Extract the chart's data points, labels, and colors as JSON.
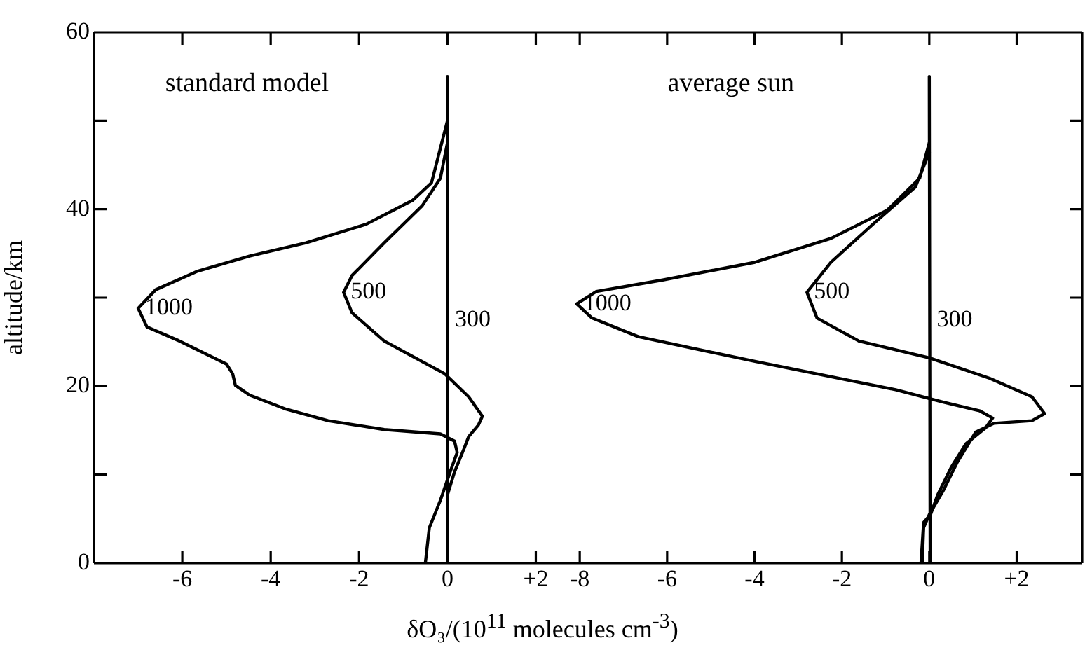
{
  "chart_data": [
    {
      "type": "line",
      "title": "standard model",
      "xlabel": "δO₃/(10$^{11}$ molecules cm$^{-3}$)",
      "ylabel": "altitude/km",
      "xlim": [
        -8,
        2.5
      ],
      "xticks": [
        -6,
        -4,
        -2,
        0,
        {
          "value": 2,
          "label": "+2"
        }
      ],
      "ylim": [
        0,
        60
      ],
      "yticks": [
        0,
        {
          "value": 10,
          "label": null
        },
        20,
        {
          "value": 30,
          "label": null
        },
        40,
        {
          "value": 50,
          "label": null
        },
        60
      ],
      "series": [
        {
          "name": "1000",
          "color": "#000000",
          "x": [
            0,
            -0.36,
            -0.79,
            -1.84,
            -3.2,
            -4.48,
            -5.65,
            -6.6,
            -7.0,
            -6.8,
            -6.06,
            -5.0,
            -4.86,
            -4.8,
            -4.48,
            -3.65,
            -2.7,
            -1.43,
            -0.16,
            0.16,
            0.22,
            0.06,
            -0.16,
            -0.41,
            -0.5
          ],
          "values": [
            50,
            43,
            41,
            38.3,
            36.2,
            34.7,
            33,
            30.9,
            28.8,
            26.7,
            25.1,
            22.5,
            21.4,
            20.1,
            19,
            17.4,
            16.1,
            15.1,
            14.6,
            13.8,
            12.5,
            10.3,
            7.1,
            4,
            0
          ]
        },
        {
          "name": "500",
          "color": "#000000",
          "x": [
            0,
            -0.16,
            -0.57,
            -1.43,
            -2.16,
            -2.35,
            -2.16,
            -1.43,
            -0.06,
            0.48,
            0.79,
            0.7,
            0.48,
            0.38,
            0.16,
            0,
            0
          ],
          "values": [
            47.5,
            43.5,
            40.4,
            36.2,
            32.5,
            30.6,
            28.3,
            25.1,
            21.4,
            18.8,
            16.6,
            15.6,
            14.3,
            13,
            10.3,
            7.7,
            0
          ]
        },
        {
          "name": "300",
          "color": "#000000",
          "x": [
            0.02,
            0
          ],
          "values": [
            0,
            55
          ]
        }
      ]
    },
    {
      "type": "line",
      "title": "average sun",
      "xlim": [
        -8.5,
        3.5
      ],
      "xticks": [
        -8,
        -6,
        -4,
        -2,
        0,
        {
          "value": 2,
          "label": "+2"
        }
      ],
      "ylim": [
        0,
        60
      ],
      "yticks": [
        0,
        10,
        20,
        30,
        40,
        50,
        60
      ],
      "tick_labels": "x",
      "series": [
        {
          "name": "1000",
          "color": "#000000",
          "x": [
            0,
            -0.22,
            -0.96,
            -2.25,
            -3.99,
            -6.1,
            -7.62,
            -8.07,
            -7.72,
            -6.66,
            -3.99,
            -2.38,
            -0.77,
            0.32,
            1.16,
            1.45,
            1.29,
            0.84,
            0.51,
            0.19,
            0.03,
            -0.13,
            -0.19
          ],
          "values": [
            47.5,
            43.5,
            39.9,
            36.7,
            34,
            32,
            30.7,
            29.3,
            27.7,
            25.6,
            22.8,
            21.2,
            19.6,
            18.2,
            17.2,
            16.4,
            15.3,
            13.5,
            10.9,
            7.7,
            5.5,
            4.6,
            0
          ]
        },
        {
          "name": "500",
          "color": "#000000",
          "x": [
            0,
            -0.32,
            -1.29,
            -2.25,
            -2.8,
            -2.57,
            -1.61,
            0,
            1.38,
            2.35,
            2.64,
            2.35,
            1.48,
            1.06,
            0.64,
            0.32,
            0,
            -0.13,
            -0.16
          ],
          "values": [
            46.4,
            42.5,
            38.3,
            34,
            30.6,
            27.7,
            25.1,
            23.2,
            20.9,
            18.8,
            16.9,
            16.1,
            15.8,
            14.8,
            11.4,
            8.2,
            5.5,
            4,
            0
          ]
        },
        {
          "name": "300",
          "color": "#000000",
          "x": [
            0.02,
            0
          ],
          "values": [
            0,
            55
          ]
        }
      ]
    }
  ]
}
